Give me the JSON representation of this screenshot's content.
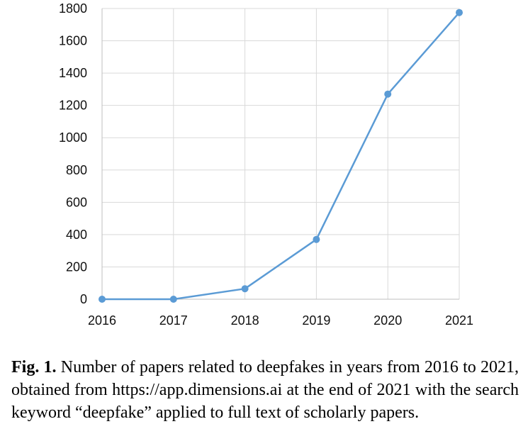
{
  "chart_data": {
    "type": "line",
    "categories": [
      "2016",
      "2017",
      "2018",
      "2019",
      "2020",
      "2021"
    ],
    "series": [
      {
        "values": [
          0,
          0,
          65,
          370,
          1270,
          1775
        ]
      }
    ],
    "yticks": [
      "0",
      "200",
      "400",
      "600",
      "800",
      "1000",
      "1200",
      "1400",
      "1600",
      "1800"
    ],
    "ylim": [
      0,
      1800
    ],
    "grid": true,
    "legend": "none",
    "line_color": "#5b9bd5",
    "grid_color": "#d9d9d9"
  },
  "caption": {
    "label": "Fig. 1.",
    "text": " Number of papers related to deepfakes in years from 2016 to 2021, obtained from https://app.dimensions.ai at the end of 2021 with the search keyword “deepfake” applied to full text of scholarly papers."
  }
}
